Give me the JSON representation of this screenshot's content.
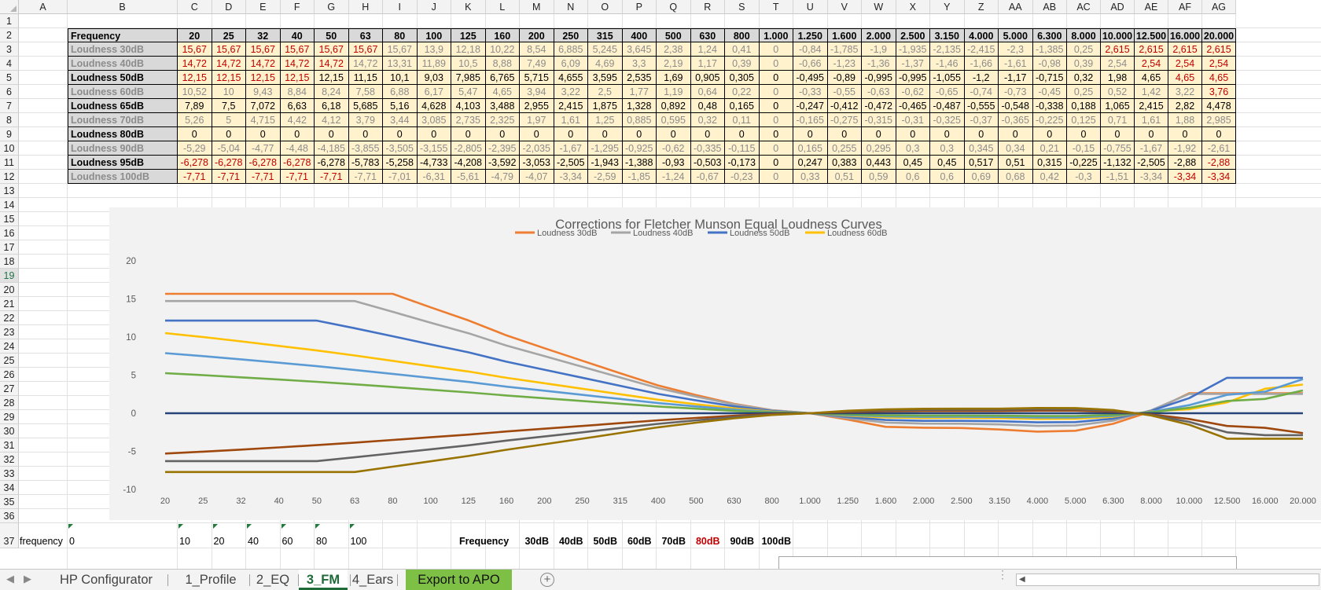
{
  "columns": [
    "A",
    "B",
    "C",
    "D",
    "E",
    "F",
    "G",
    "H",
    "I",
    "J",
    "K",
    "L",
    "M",
    "N",
    "O",
    "P",
    "Q",
    "R",
    "S",
    "T",
    "U",
    "V",
    "W",
    "X",
    "Y",
    "Z",
    "AA",
    "AB",
    "AC",
    "AD",
    "AE",
    "AF",
    "AG"
  ],
  "rows": [
    1,
    2,
    3,
    4,
    5,
    6,
    7,
    8,
    9,
    10,
    11,
    12,
    13,
    14,
    15,
    16,
    17,
    18,
    19,
    20,
    21,
    22,
    23,
    24,
    25,
    26,
    27,
    28,
    29,
    30,
    31,
    32,
    33,
    34,
    35,
    36,
    37
  ],
  "selected_row": 19,
  "table": {
    "header_label": "Frequency",
    "frequencies": [
      "20",
      "25",
      "32",
      "40",
      "50",
      "63",
      "80",
      "100",
      "125",
      "160",
      "200",
      "250",
      "315",
      "400",
      "500",
      "630",
      "800",
      "1.000",
      "1.250",
      "1.600",
      "2.000",
      "2.500",
      "3.150",
      "4.000",
      "5.000",
      "6.300",
      "8.000",
      "10.000",
      "12.500",
      "16.000",
      "20.000"
    ],
    "rows": [
      {
        "label": "Loudness 30dB",
        "style": "grey",
        "values": [
          "15,67",
          "15,67",
          "15,67",
          "15,67",
          "15,67",
          "15,67",
          "15,67",
          "13,9",
          "12,18",
          "10,22",
          "8,54",
          "6,885",
          "5,245",
          "3,645",
          "2,38",
          "1,24",
          "0,41",
          "0",
          "-0,84",
          "-1,785",
          "-1,9",
          "-1,935",
          "-2,135",
          "-2,415",
          "-2,3",
          "-1,385",
          "0,25",
          "2,615",
          "2,615",
          "2,615",
          "2,615"
        ],
        "red": [
          0,
          1,
          2,
          3,
          4,
          5,
          27,
          28,
          29,
          30
        ]
      },
      {
        "label": "Loudness 40dB",
        "style": "grey",
        "values": [
          "14,72",
          "14,72",
          "14,72",
          "14,72",
          "14,72",
          "14,72",
          "13,31",
          "11,89",
          "10,5",
          "8,88",
          "7,49",
          "6,09",
          "4,69",
          "3,3",
          "2,19",
          "1,17",
          "0,39",
          "0",
          "-0,66",
          "-1,23",
          "-1,36",
          "-1,37",
          "-1,46",
          "-1,66",
          "-1,61",
          "-0,98",
          "0,39",
          "2,54",
          "2,54",
          "2,54",
          "2,54"
        ],
        "red": [
          0,
          1,
          2,
          3,
          4,
          28,
          29,
          30
        ]
      },
      {
        "label": "Loudness 50dB",
        "style": "black",
        "values": [
          "12,15",
          "12,15",
          "12,15",
          "12,15",
          "12,15",
          "11,15",
          "10,1",
          "9,03",
          "7,985",
          "6,765",
          "5,715",
          "4,655",
          "3,595",
          "2,535",
          "1,69",
          "0,905",
          "0,305",
          "0",
          "-0,495",
          "-0,89",
          "-0,995",
          "-0,995",
          "-1,055",
          "-1,2",
          "-1,17",
          "-0,715",
          "0,32",
          "1,98",
          "4,65",
          "4,65",
          "4,65"
        ],
        "red": [
          0,
          1,
          2,
          3,
          29,
          30
        ]
      },
      {
        "label": "Loudness 60dB",
        "style": "grey",
        "values": [
          "10,52",
          "10",
          "9,43",
          "8,84",
          "8,24",
          "7,58",
          "6,88",
          "6,17",
          "5,47",
          "4,65",
          "3,94",
          "3,22",
          "2,5",
          "1,77",
          "1,19",
          "0,64",
          "0,22",
          "0",
          "-0,33",
          "-0,55",
          "-0,63",
          "-0,62",
          "-0,65",
          "-0,74",
          "-0,73",
          "-0,45",
          "0,25",
          "0,52",
          "1,42",
          "3,22",
          "3,76"
        ],
        "red": [
          30
        ]
      },
      {
        "label": "Loudness 65dB",
        "style": "black",
        "values": [
          "7,89",
          "7,5",
          "7,072",
          "6,63",
          "6,18",
          "5,685",
          "5,16",
          "4,628",
          "4,103",
          "3,488",
          "2,955",
          "2,415",
          "1,875",
          "1,328",
          "0,892",
          "0,48",
          "0,165",
          "0",
          "-0,247",
          "-0,412",
          "-0,472",
          "-0,465",
          "-0,487",
          "-0,555",
          "-0,548",
          "-0,338",
          "0,188",
          "1,065",
          "2,415",
          "2,82",
          "4,478"
        ],
        "red": []
      },
      {
        "label": "Loudness 70dB",
        "style": "grey",
        "values": [
          "5,26",
          "5",
          "4,715",
          "4,42",
          "4,12",
          "3,79",
          "3,44",
          "3,085",
          "2,735",
          "2,325",
          "1,97",
          "1,61",
          "1,25",
          "0,885",
          "0,595",
          "0,32",
          "0,11",
          "0",
          "-0,165",
          "-0,275",
          "-0,315",
          "-0,31",
          "-0,325",
          "-0,37",
          "-0,365",
          "-0,225",
          "0,125",
          "0,71",
          "1,61",
          "1,88",
          "2,985"
        ],
        "red": []
      },
      {
        "label": "Loudness 80dB",
        "style": "black",
        "values": [
          "0",
          "0",
          "0",
          "0",
          "0",
          "0",
          "0",
          "0",
          "0",
          "0",
          "0",
          "0",
          "0",
          "0",
          "0",
          "0",
          "0",
          "0",
          "0",
          "0",
          "0",
          "0",
          "0",
          "0",
          "0",
          "0",
          "0",
          "0",
          "0",
          "0",
          "0"
        ],
        "red": []
      },
      {
        "label": "Loudness 90dB",
        "style": "grey",
        "values": [
          "-5,29",
          "-5,04",
          "-4,77",
          "-4,48",
          "-4,185",
          "-3,855",
          "-3,505",
          "-3,155",
          "-2,805",
          "-2,395",
          "-2,035",
          "-1,67",
          "-1,295",
          "-0,925",
          "-0,62",
          "-0,335",
          "-0,115",
          "0",
          "0,165",
          "0,255",
          "0,295",
          "0,3",
          "0,3",
          "0,345",
          "0,34",
          "0,21",
          "-0,15",
          "-0,755",
          "-1,67",
          "-1,92",
          "-2,61"
        ],
        "red": []
      },
      {
        "label": "Loudness 95dB",
        "style": "black",
        "values": [
          "-6,278",
          "-6,278",
          "-6,278",
          "-6,278",
          "-6,278",
          "-5,783",
          "-5,258",
          "-4,733",
          "-4,208",
          "-3,592",
          "-3,053",
          "-2,505",
          "-1,943",
          "-1,388",
          "-0,93",
          "-0,503",
          "-0,173",
          "0",
          "0,247",
          "0,383",
          "0,443",
          "0,45",
          "0,45",
          "0,517",
          "0,51",
          "0,315",
          "-0,225",
          "-1,132",
          "-2,505",
          "-2,88",
          "-2,88"
        ],
        "red": [
          0,
          1,
          2,
          3,
          30
        ]
      },
      {
        "label": "Loudness 100dB",
        "style": "grey",
        "values": [
          "-7,71",
          "-7,71",
          "-7,71",
          "-7,71",
          "-7,71",
          "-7,71",
          "-7,01",
          "-6,31",
          "-5,61",
          "-4,79",
          "-4,07",
          "-3,34",
          "-2,59",
          "-1,85",
          "-1,24",
          "-0,67",
          "-0,23",
          "0",
          "0,33",
          "0,51",
          "0,59",
          "0,6",
          "0,6",
          "0,69",
          "0,68",
          "0,42",
          "-0,3",
          "-1,51",
          "-3,34",
          "-3,34",
          "-3,34"
        ],
        "red": [
          0,
          1,
          2,
          3,
          4,
          29,
          30
        ]
      }
    ]
  },
  "row37": {
    "a_label": "frequency",
    "b_value": "0",
    "c_values": [
      "10",
      "20",
      "40",
      "60",
      "80",
      "100"
    ],
    "freq_label": "Frequency",
    "db_labels": [
      "30dB",
      "40dB",
      "50dB",
      "60dB",
      "70dB",
      "80dB",
      "90dB",
      "100dB"
    ],
    "db_red_index": 5
  },
  "chart_data": {
    "type": "line",
    "title": "Corrections for Fletcher Munson Equal Loudness Curves",
    "categories": [
      "20",
      "25",
      "32",
      "40",
      "50",
      "63",
      "80",
      "100",
      "125",
      "160",
      "200",
      "250",
      "315",
      "400",
      "500",
      "630",
      "800",
      "1.000",
      "1.250",
      "1.600",
      "2.000",
      "2.500",
      "3.150",
      "4.000",
      "5.000",
      "6.300",
      "8.000",
      "10.000",
      "12.500",
      "16.000",
      "20.000"
    ],
    "ylim": [
      -10,
      20
    ],
    "yticks": [
      -10,
      -5,
      0,
      5,
      10,
      15,
      20
    ],
    "grid": false,
    "legend_position": "top",
    "series": [
      {
        "name": "Loudness 30dB",
        "color": "#ed7d31",
        "legend": true,
        "values": [
          15.67,
          15.67,
          15.67,
          15.67,
          15.67,
          15.67,
          15.67,
          13.9,
          12.18,
          10.22,
          8.54,
          6.885,
          5.245,
          3.645,
          2.38,
          1.24,
          0.41,
          0,
          -0.84,
          -1.785,
          -1.9,
          -1.935,
          -2.135,
          -2.415,
          -2.3,
          -1.385,
          0.25,
          2.615,
          2.615,
          2.615,
          2.615
        ]
      },
      {
        "name": "Loudness 40dB",
        "color": "#a5a5a5",
        "legend": true,
        "values": [
          14.72,
          14.72,
          14.72,
          14.72,
          14.72,
          14.72,
          13.31,
          11.89,
          10.5,
          8.88,
          7.49,
          6.09,
          4.69,
          3.3,
          2.19,
          1.17,
          0.39,
          0,
          -0.66,
          -1.23,
          -1.36,
          -1.37,
          -1.46,
          -1.66,
          -1.61,
          -0.98,
          0.39,
          2.54,
          2.54,
          2.54,
          2.54
        ]
      },
      {
        "name": "Loudness 50dB",
        "color": "#4472c4",
        "legend": true,
        "values": [
          12.15,
          12.15,
          12.15,
          12.15,
          12.15,
          11.15,
          10.1,
          9.03,
          7.985,
          6.765,
          5.715,
          4.655,
          3.595,
          2.535,
          1.69,
          0.905,
          0.305,
          0,
          -0.495,
          -0.89,
          -0.995,
          -0.995,
          -1.055,
          -1.2,
          -1.17,
          -0.715,
          0.32,
          1.98,
          4.65,
          4.65,
          4.65
        ]
      },
      {
        "name": "Loudness 60dB",
        "color": "#ffc000",
        "legend": true,
        "values": [
          10.52,
          10,
          9.43,
          8.84,
          8.24,
          7.58,
          6.88,
          6.17,
          5.47,
          4.65,
          3.94,
          3.22,
          2.5,
          1.77,
          1.19,
          0.64,
          0.22,
          0,
          -0.33,
          -0.55,
          -0.63,
          -0.62,
          -0.65,
          -0.74,
          -0.73,
          -0.45,
          0.25,
          0.52,
          1.42,
          3.22,
          3.76
        ]
      },
      {
        "color": "#5b9bd5",
        "legend": false,
        "values": [
          7.89,
          7.5,
          7.072,
          6.63,
          6.18,
          5.685,
          5.16,
          4.628,
          4.103,
          3.488,
          2.955,
          2.415,
          1.875,
          1.328,
          0.892,
          0.48,
          0.165,
          0,
          -0.247,
          -0.412,
          -0.472,
          -0.465,
          -0.487,
          -0.555,
          -0.548,
          -0.338,
          0.188,
          1.065,
          2.415,
          2.82,
          4.478
        ]
      },
      {
        "color": "#70ad47",
        "legend": false,
        "values": [
          5.26,
          5,
          4.715,
          4.42,
          4.12,
          3.79,
          3.44,
          3.085,
          2.735,
          2.325,
          1.97,
          1.61,
          1.25,
          0.885,
          0.595,
          0.32,
          0.11,
          0,
          -0.165,
          -0.275,
          -0.315,
          -0.31,
          -0.325,
          -0.37,
          -0.365,
          -0.225,
          0.125,
          0.71,
          1.61,
          1.88,
          2.985
        ]
      },
      {
        "color": "#264478",
        "legend": false,
        "values": [
          0,
          0,
          0,
          0,
          0,
          0,
          0,
          0,
          0,
          0,
          0,
          0,
          0,
          0,
          0,
          0,
          0,
          0,
          0,
          0,
          0,
          0,
          0,
          0,
          0,
          0,
          0,
          0,
          0,
          0,
          0
        ]
      },
      {
        "color": "#9e480e",
        "legend": false,
        "values": [
          -5.29,
          -5.04,
          -4.77,
          -4.48,
          -4.185,
          -3.855,
          -3.505,
          -3.155,
          -2.805,
          -2.395,
          -2.035,
          -1.67,
          -1.295,
          -0.925,
          -0.62,
          -0.335,
          -0.115,
          0,
          0.165,
          0.255,
          0.295,
          0.3,
          0.3,
          0.345,
          0.34,
          0.21,
          -0.15,
          -0.755,
          -1.67,
          -1.92,
          -2.61
        ]
      },
      {
        "color": "#636363",
        "legend": false,
        "values": [
          -6.278,
          -6.278,
          -6.278,
          -6.278,
          -6.278,
          -5.783,
          -5.258,
          -4.733,
          -4.208,
          -3.592,
          -3.053,
          -2.505,
          -1.943,
          -1.388,
          -0.93,
          -0.503,
          -0.173,
          0,
          0.247,
          0.383,
          0.443,
          0.45,
          0.45,
          0.517,
          0.51,
          0.315,
          -0.225,
          -1.132,
          -2.505,
          -2.88,
          -2.88
        ]
      },
      {
        "color": "#997300",
        "legend": false,
        "values": [
          -7.71,
          -7.71,
          -7.71,
          -7.71,
          -7.71,
          -7.71,
          -7.01,
          -6.31,
          -5.61,
          -4.79,
          -4.07,
          -3.34,
          -2.59,
          -1.85,
          -1.24,
          -0.67,
          -0.23,
          0,
          0.33,
          0.51,
          0.59,
          0.6,
          0.6,
          0.69,
          0.68,
          0.42,
          -0.3,
          -1.51,
          -3.34,
          -3.34,
          -3.34
        ]
      }
    ]
  },
  "tabs": {
    "items": [
      {
        "label": "HP Configurator",
        "type": "normal"
      },
      {
        "label": "1_Profile",
        "type": "normal"
      },
      {
        "label": "2_EQ",
        "type": "normal"
      },
      {
        "label": "3_FM",
        "type": "active"
      },
      {
        "label": "4_Ears",
        "type": "normal"
      },
      {
        "label": "Export to APO",
        "type": "apo"
      }
    ],
    "add_label": "+"
  }
}
